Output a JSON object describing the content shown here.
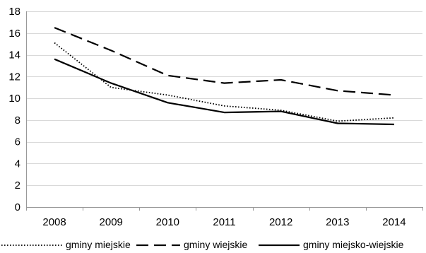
{
  "chart_data": {
    "type": "line",
    "title": "",
    "xlabel": "",
    "ylabel": "",
    "categories": [
      "2008",
      "2009",
      "2010",
      "2011",
      "2012",
      "2013",
      "2014"
    ],
    "ylim": [
      0,
      18
    ],
    "yticks": [
      0,
      2,
      4,
      6,
      8,
      10,
      12,
      14,
      16,
      18
    ],
    "grid": "horizontal",
    "legend_position": "bottom",
    "series": [
      {
        "name": "gminy miejskie",
        "line_style": "dotted",
        "color": "#000000",
        "values": [
          15.1,
          11.0,
          10.3,
          9.3,
          8.9,
          7.9,
          8.2
        ]
      },
      {
        "name": "gminy wiejskie",
        "line_style": "dashed",
        "color": "#000000",
        "values": [
          16.5,
          14.4,
          12.1,
          11.4,
          11.7,
          10.7,
          10.3
        ]
      },
      {
        "name": "gminy miejsko-wiejskie",
        "line_style": "solid",
        "color": "#000000",
        "values": [
          13.6,
          11.4,
          9.6,
          8.7,
          8.8,
          7.7,
          7.6
        ]
      }
    ]
  }
}
